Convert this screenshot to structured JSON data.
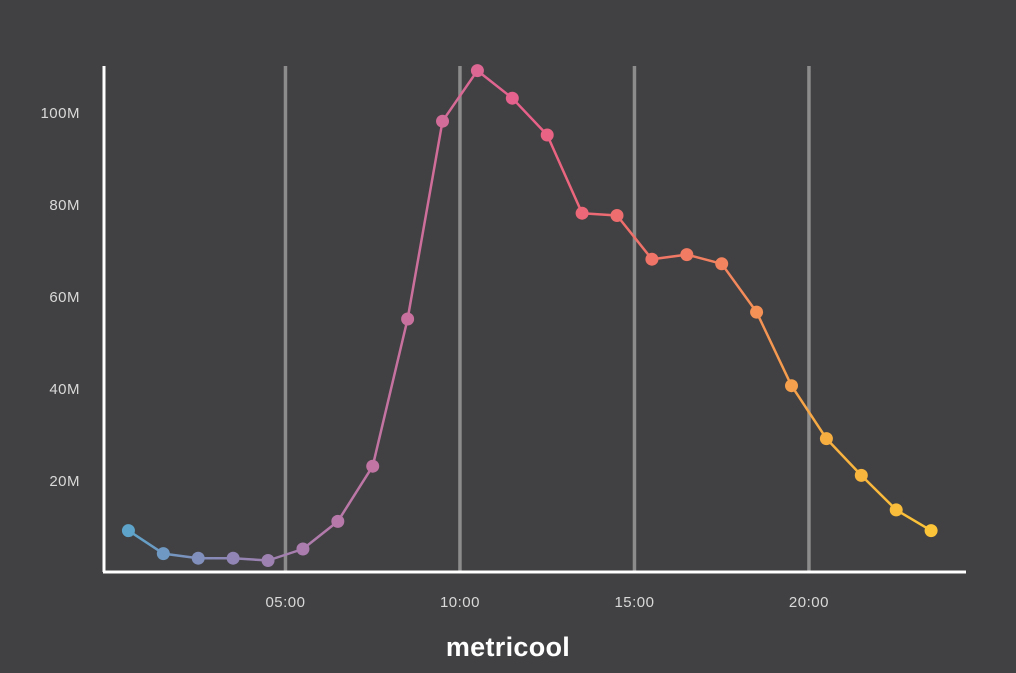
{
  "brand": {
    "logo_text": "metricool"
  },
  "colors": {
    "background": "#414042",
    "axis": "#ffffff",
    "gridline": "#8c8c8c",
    "tick_text": "#d9d9d9",
    "gradient": [
      "#5ea3c9",
      "#8f86b5",
      "#b47aab",
      "#cf6e9a",
      "#e8608a",
      "#ef6f6a",
      "#f3865e",
      "#f7b040",
      "#fcc438"
    ]
  },
  "chart_data": {
    "type": "line",
    "title": "",
    "xlabel": "",
    "ylabel": "",
    "x_unit": "hour of day",
    "x": [
      0.5,
      1.5,
      2.5,
      3.5,
      4.5,
      5.5,
      6.5,
      7.5,
      8.5,
      9.5,
      10.5,
      11.5,
      12.5,
      13.5,
      14.5,
      15.5,
      16.5,
      17.5,
      18.5,
      19.5,
      20.5,
      21.5,
      22.5,
      23.5
    ],
    "y": [
      9000000,
      4000000,
      3000000,
      3000000,
      2500000,
      5000000,
      11000000,
      23000000,
      55000000,
      98000000,
      109000000,
      103000000,
      95000000,
      78000000,
      77500000,
      68000000,
      69000000,
      67000000,
      56500000,
      40500000,
      29000000,
      21000000,
      13500000,
      9000000
    ],
    "xlim": [
      -0.2,
      24.5
    ],
    "ylim": [
      0,
      110000000
    ],
    "x_ticks": [
      {
        "value": 5,
        "label": "05:00"
      },
      {
        "value": 10,
        "label": "10:00"
      },
      {
        "value": 15,
        "label": "15:00"
      },
      {
        "value": 20,
        "label": "20:00"
      }
    ],
    "y_ticks": [
      {
        "value": 20000000,
        "label": "20M"
      },
      {
        "value": 40000000,
        "label": "40M"
      },
      {
        "value": 60000000,
        "label": "60M"
      },
      {
        "value": 80000000,
        "label": "80M"
      },
      {
        "value": 100000000,
        "label": "100M"
      }
    ],
    "grid": {
      "vertical": true,
      "horizontal": false
    },
    "legend": "none"
  }
}
